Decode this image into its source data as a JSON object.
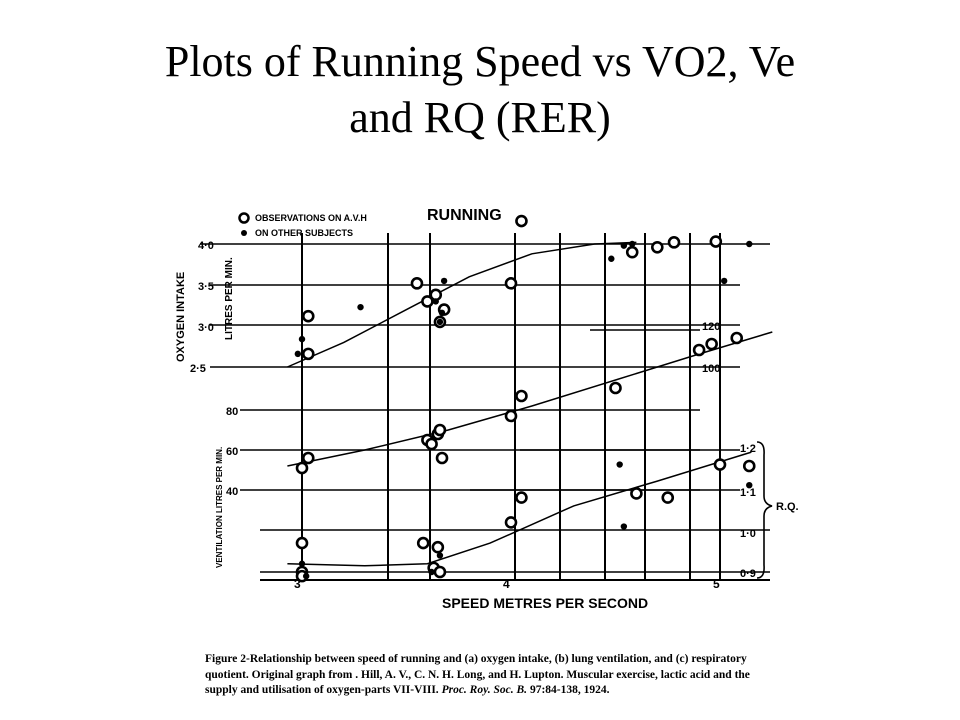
{
  "slide": {
    "title_line1": "Plots of Running Speed vs VO2, Ve",
    "title_line2": "and RQ (RER)"
  },
  "caption": {
    "part1": "Figure 2-Relationship between speed of running and (a) oxygen intake, (b) lung ventilation, and (c) respiratory quotient. Original graph from . Hill, A. V., C. N. H. Long, and H. Lupton. Muscular exercise, lactic acid and the supply and utilisation of oxygen-parts VII-VIII.",
    "journal": "Proc. Roy. Soc. B.",
    "part2": "97:84-138, 1924."
  },
  "chart_data": {
    "type": "scatter",
    "title": "RUNNING",
    "xlabel": "SPEED METRES PER SECOND",
    "x_ticks": [
      "3",
      "4",
      "5"
    ],
    "xlim": [
      2.9,
      5.2
    ],
    "legend": {
      "position": "top-left",
      "entries": [
        {
          "marker": "open-circle",
          "label": "OBSERVATIONS ON A.V.H"
        },
        {
          "marker": "filled-dot",
          "label": "ON OTHER SUBJECTS"
        }
      ]
    },
    "grid": true,
    "panels": [
      {
        "name": "oxygen-intake",
        "ylabel": "OXYGEN INTAKE",
        "ylabel2": "LITRES PER MIN.",
        "y_ticks": [
          "2·5",
          "3·0",
          "3·5",
          "4·0"
        ],
        "ylim": [
          2.45,
          4.05
        ],
        "avh": [
          [
            3.03,
            3.12
          ],
          [
            3.03,
            2.66
          ],
          [
            3.55,
            3.52
          ],
          [
            3.6,
            3.3
          ],
          [
            3.64,
            3.38
          ],
          [
            3.66,
            3.05
          ],
          [
            3.68,
            3.2
          ],
          [
            4.0,
            3.52
          ],
          [
            4.05,
            4.28
          ],
          [
            4.58,
            3.9
          ],
          [
            4.7,
            3.96
          ],
          [
            4.78,
            4.02
          ],
          [
            4.98,
            4.03
          ]
        ],
        "other": [
          [
            2.98,
            2.66
          ],
          [
            3.0,
            2.84
          ],
          [
            3.28,
            3.23
          ],
          [
            3.64,
            3.3
          ],
          [
            3.66,
            3.05
          ],
          [
            3.67,
            3.16
          ],
          [
            3.68,
            3.55
          ],
          [
            4.48,
            3.82
          ],
          [
            4.54,
            3.98
          ],
          [
            4.58,
            4.0
          ],
          [
            5.02,
            3.55
          ],
          [
            5.14,
            4.0
          ]
        ],
        "curve": [
          [
            2.93,
            2.5
          ],
          [
            3.2,
            2.8
          ],
          [
            3.5,
            3.2
          ],
          [
            3.8,
            3.6
          ],
          [
            4.1,
            3.88
          ],
          [
            4.4,
            4.0
          ],
          [
            4.6,
            4.02
          ]
        ]
      },
      {
        "name": "ventilation",
        "ylabel": "VENTILATION LITRES PER MIN.",
        "y_ticks": [
          "40",
          "60",
          "80",
          "100",
          "120"
        ],
        "ylim": [
          32,
          122
        ],
        "avh": [
          [
            3.0,
            51
          ],
          [
            3.03,
            56
          ],
          [
            3.6,
            65
          ],
          [
            3.62,
            63
          ],
          [
            3.65,
            68
          ],
          [
            3.66,
            70
          ],
          [
            3.67,
            56
          ],
          [
            4.0,
            77
          ],
          [
            4.05,
            87
          ],
          [
            4.5,
            91
          ],
          [
            4.9,
            110
          ],
          [
            4.96,
            113
          ],
          [
            5.08,
            116
          ],
          [
            5.14,
            52
          ]
        ],
        "curve": [
          [
            2.93,
            52
          ],
          [
            3.3,
            60
          ],
          [
            3.7,
            70
          ],
          [
            4.1,
            82
          ],
          [
            4.5,
            95
          ],
          [
            4.9,
            108
          ],
          [
            5.25,
            119
          ]
        ]
      },
      {
        "name": "respiratory-quotient",
        "ylabel": "R.Q.",
        "y_ticks": [
          "0·9",
          "1·0",
          "1·1",
          "1·2"
        ],
        "ylim": [
          0.88,
          1.22
        ],
        "avh": [
          [
            3.0,
            0.97
          ],
          [
            3.0,
            0.9
          ],
          [
            3.0,
            0.89
          ],
          [
            3.58,
            0.97
          ],
          [
            3.63,
            0.91
          ],
          [
            3.65,
            0.96
          ],
          [
            3.66,
            0.9
          ],
          [
            4.0,
            1.02
          ],
          [
            4.05,
            1.08
          ],
          [
            4.6,
            1.09
          ],
          [
            4.75,
            1.08
          ],
          [
            5.0,
            1.16
          ]
        ],
        "other": [
          [
            3.0,
            0.92
          ],
          [
            3.02,
            0.89
          ],
          [
            3.62,
            0.9
          ],
          [
            3.66,
            0.94
          ],
          [
            4.52,
            1.16
          ],
          [
            4.54,
            1.01
          ],
          [
            5.14,
            1.11
          ]
        ],
        "curve": [
          [
            2.93,
            0.92
          ],
          [
            3.3,
            0.915
          ],
          [
            3.6,
            0.92
          ],
          [
            3.9,
            0.97
          ],
          [
            4.3,
            1.06
          ],
          [
            4.7,
            1.12
          ],
          [
            5.15,
            1.19
          ]
        ]
      }
    ]
  }
}
